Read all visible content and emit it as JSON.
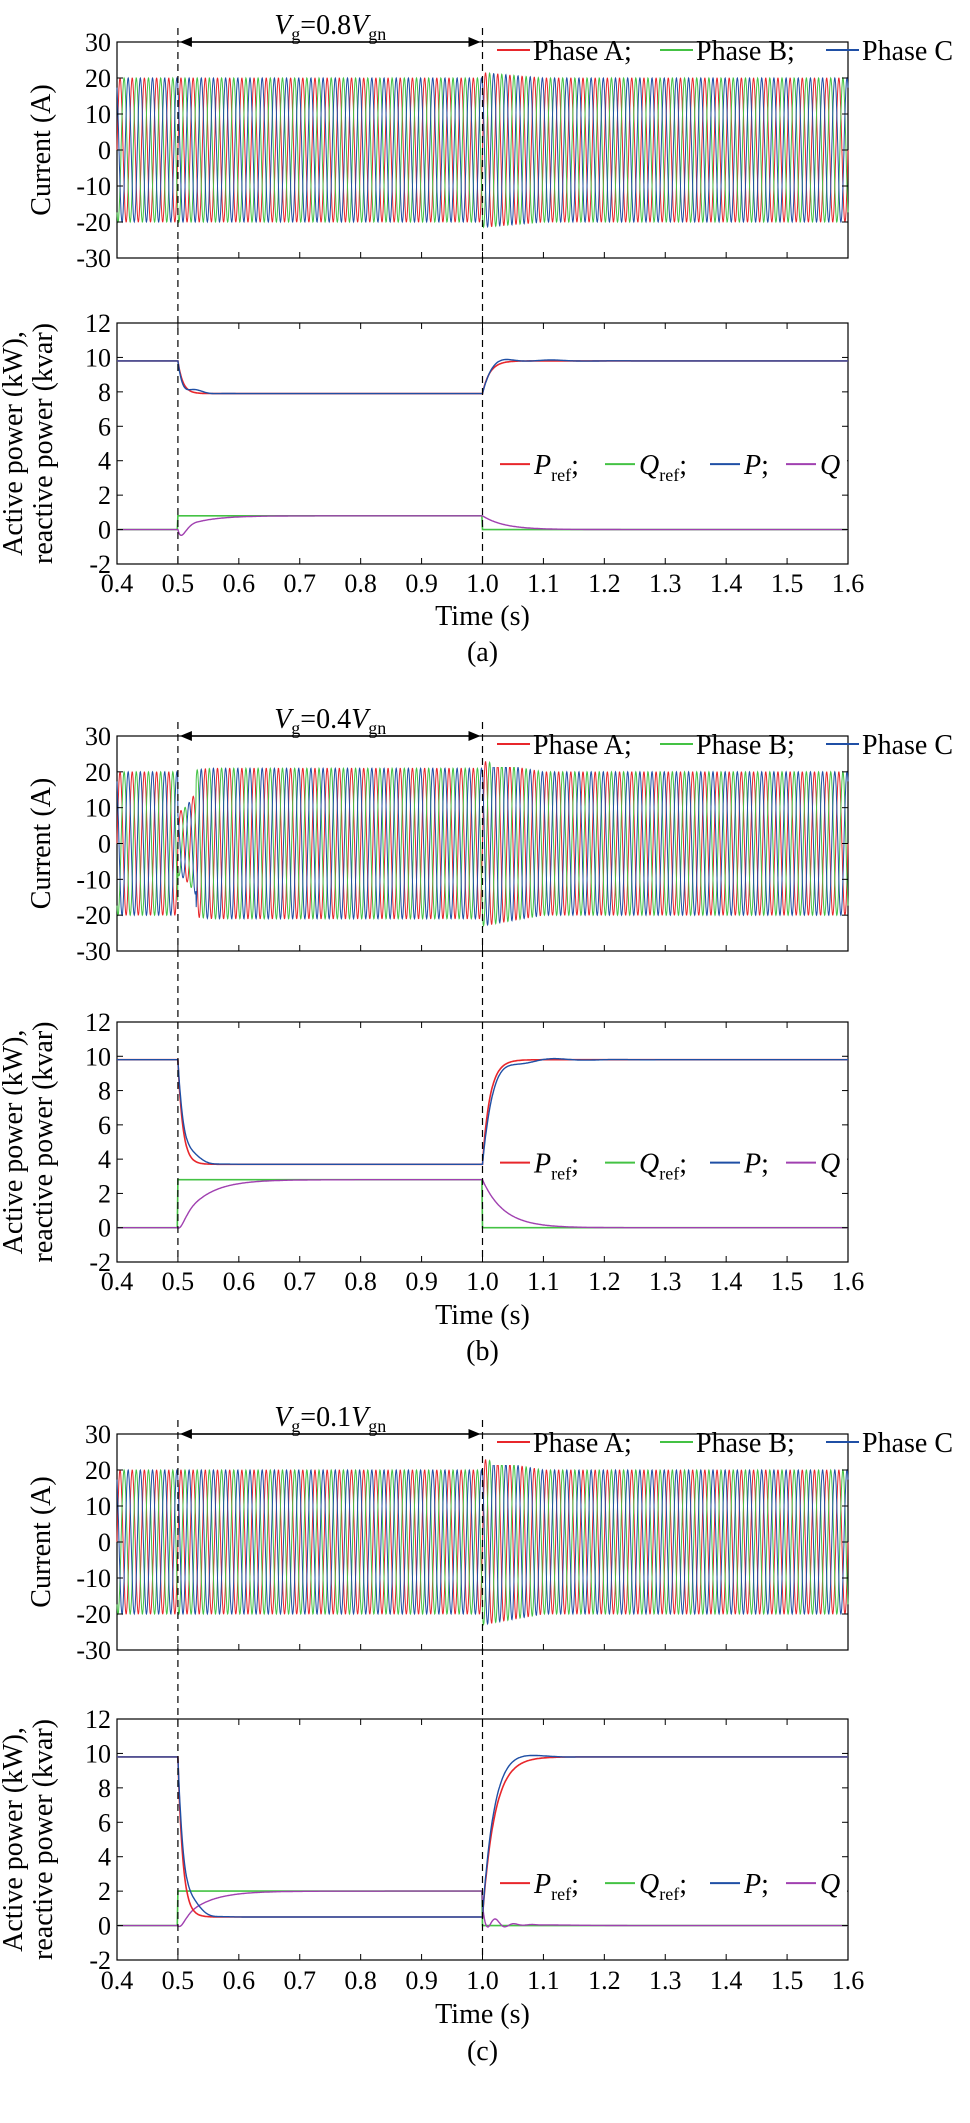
{
  "colors": {
    "phase_a": "#e8262b",
    "phase_b": "#44c244",
    "phase_c": "#1f4fa5",
    "p_ref": "#e8262b",
    "q_ref": "#44c244",
    "p": "#1f4fa5",
    "q": "#a040b0"
  },
  "chart_data": [
    {
      "panel": "(a)",
      "type": "line",
      "voltage_label": {
        "v": "V",
        "g": "g",
        "eq": "=0.8",
        "v2": "V",
        "gn": "gn"
      },
      "dip": 0.8,
      "current": {
        "ylabel": "Current (A)",
        "ylim": [
          -30,
          30
        ],
        "yticks": [
          30,
          20,
          10,
          0,
          -10,
          -20,
          -30
        ],
        "legend": [
          "Phase A;",
          "Phase B;",
          "Phase C"
        ],
        "amplitude_normal": 20,
        "amplitude_fault": 20
      },
      "power": {
        "ylabel": [
          "Active power (kW),",
          "reactive power (kvar)"
        ],
        "ylim": [
          -2,
          12
        ],
        "yticks": [
          12,
          10,
          8,
          6,
          4,
          2,
          0,
          -2
        ],
        "legend": {
          "p_ref": "P",
          "p_ref_sub": "ref",
          "q_ref": "Q",
          "q_ref_sub": "ref",
          "p": "P",
          "q": "Q"
        },
        "p_normal": 9.8,
        "p_fault": 7.9,
        "q_fault": 0.8
      },
      "xlabel": "Time (s)",
      "xlim": [
        0.4,
        1.6
      ],
      "xticks": [
        "0.4",
        "0.5",
        "0.6",
        "0.7",
        "0.8",
        "0.9",
        "1.0",
        "1.1",
        "1.2",
        "1.3",
        "1.4",
        "1.5",
        "1.6"
      ],
      "fault_start": 0.5,
      "fault_end": 1.0
    },
    {
      "panel": "(b)",
      "type": "line",
      "voltage_label": {
        "v": "V",
        "g": "g",
        "eq": "=0.4",
        "v2": "V",
        "gn": "gn"
      },
      "dip": 0.4,
      "current": {
        "ylabel": "Current (A)",
        "ylim": [
          -30,
          30
        ],
        "yticks": [
          30,
          20,
          10,
          0,
          -10,
          -20,
          -30
        ],
        "legend": [
          "Phase A;",
          "Phase B;",
          "Phase C"
        ],
        "amplitude_normal": 20,
        "amplitude_fault": 21
      },
      "power": {
        "ylabel": [
          "Active power (kW),",
          "reactive power (kvar)"
        ],
        "ylim": [
          -2,
          12
        ],
        "yticks": [
          12,
          10,
          8,
          6,
          4,
          2,
          0,
          -2
        ],
        "legend": {
          "p_ref": "P",
          "p_ref_sub": "ref",
          "q_ref": "Q",
          "q_ref_sub": "ref",
          "p": "P",
          "q": "Q"
        },
        "p_normal": 9.8,
        "p_fault": 3.7,
        "q_fault": 2.8
      },
      "xlabel": "Time (s)",
      "xlim": [
        0.4,
        1.6
      ],
      "xticks": [
        "0.4",
        "0.5",
        "0.6",
        "0.7",
        "0.8",
        "0.9",
        "1.0",
        "1.1",
        "1.2",
        "1.3",
        "1.4",
        "1.5",
        "1.6"
      ],
      "fault_start": 0.5,
      "fault_end": 1.0
    },
    {
      "panel": "(c)",
      "type": "line",
      "voltage_label": {
        "v": "V",
        "g": "g",
        "eq": "=0.1",
        "v2": "V",
        "gn": "gn"
      },
      "dip": 0.1,
      "current": {
        "ylabel": "Current (A)",
        "ylim": [
          -30,
          30
        ],
        "yticks": [
          30,
          20,
          10,
          0,
          -10,
          -20,
          -30
        ],
        "legend": [
          "Phase A;",
          "Phase B;",
          "Phase C"
        ],
        "amplitude_normal": 20,
        "amplitude_fault": 20
      },
      "power": {
        "ylabel": [
          "Active power (kW),",
          "reactive power (kvar)"
        ],
        "ylim": [
          -2,
          12
        ],
        "yticks": [
          12,
          10,
          8,
          6,
          4,
          2,
          0,
          -2
        ],
        "legend": {
          "p_ref": "P",
          "p_ref_sub": "ref",
          "q_ref": "Q",
          "q_ref_sub": "ref",
          "p": "P",
          "q": "Q"
        },
        "p_normal": 9.8,
        "p_fault": 0.5,
        "q_fault": 2.0
      },
      "xlabel": "Time (s)",
      "xlim": [
        0.4,
        1.6
      ],
      "xticks": [
        "0.4",
        "0.5",
        "0.6",
        "0.7",
        "0.8",
        "0.9",
        "1.0",
        "1.1",
        "1.2",
        "1.3",
        "1.4",
        "1.5",
        "1.6"
      ],
      "fault_start": 0.5,
      "fault_end": 1.0
    }
  ]
}
